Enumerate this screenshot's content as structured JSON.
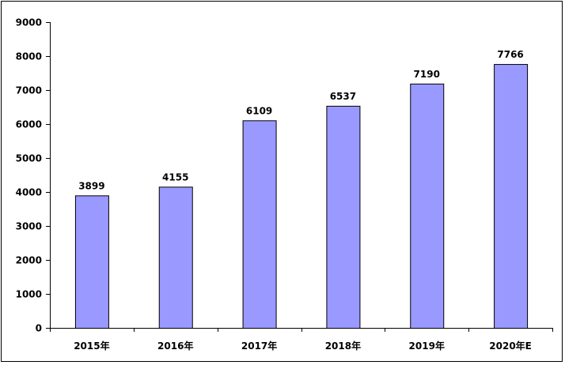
{
  "chart_data": {
    "type": "bar",
    "categories": [
      "2015年",
      "2016年",
      "2017年",
      "2018年",
      "2019年",
      "2020年E"
    ],
    "values": [
      3899,
      4155,
      6109,
      6537,
      7190,
      7766
    ],
    "data_labels": [
      "3899",
      "4155",
      "6109",
      "6537",
      "7190",
      "7766"
    ],
    "title": "",
    "xlabel": "",
    "ylabel": "",
    "ylim": [
      0,
      9000
    ],
    "yticks": [
      0,
      1000,
      2000,
      3000,
      4000,
      5000,
      6000,
      7000,
      8000,
      9000
    ],
    "ytick_labels": [
      "0",
      "1000",
      "2000",
      "3000",
      "4000",
      "5000",
      "6000",
      "7000",
      "8000",
      "9000"
    ],
    "grid": false,
    "legend": "none",
    "bar_color": "#9999ff",
    "bar_border_color": "#000000"
  }
}
